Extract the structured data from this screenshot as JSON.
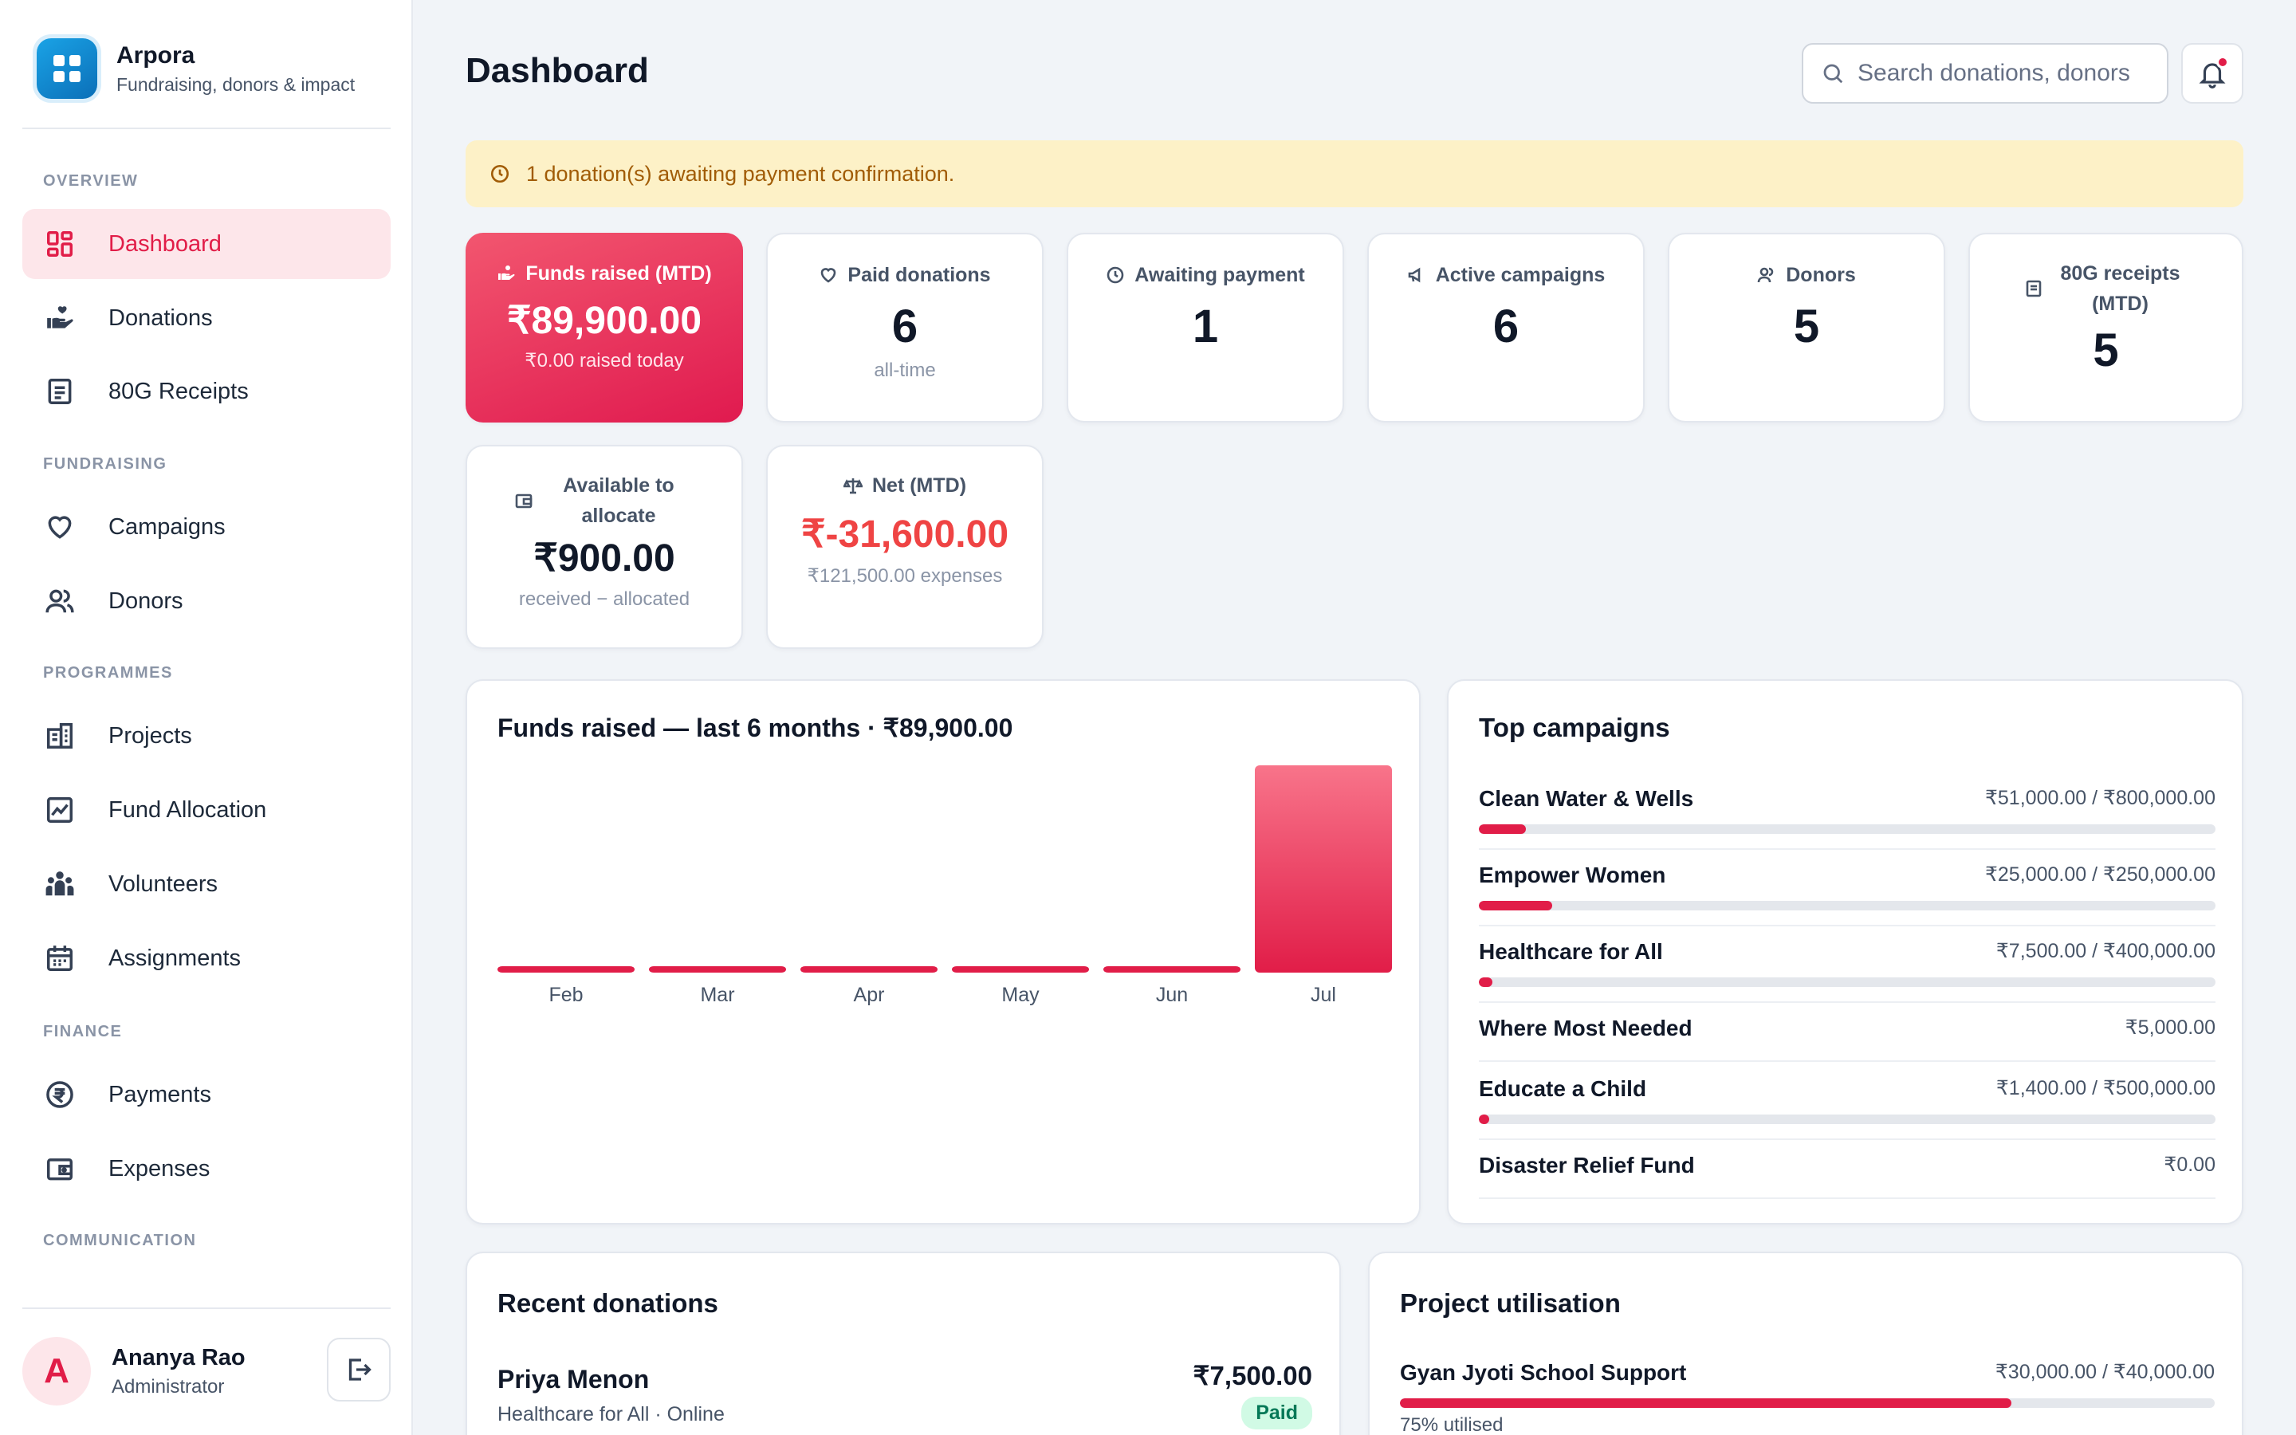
{
  "app": {
    "name": "Arpora",
    "tagline": "Fundraising, donors & impact"
  },
  "sidebar": {
    "sections": [
      {
        "label": "OVERVIEW",
        "items": [
          {
            "label": "Dashboard",
            "icon": "dashboard-icon",
            "active": true
          },
          {
            "label": "Donations",
            "icon": "donation-hand-icon"
          },
          {
            "label": "80G Receipts",
            "icon": "receipt-icon"
          }
        ]
      },
      {
        "label": "FUNDRAISING",
        "items": [
          {
            "label": "Campaigns",
            "icon": "heart-icon"
          },
          {
            "label": "Donors",
            "icon": "users-icon"
          }
        ]
      },
      {
        "label": "PROGRAMMES",
        "items": [
          {
            "label": "Projects",
            "icon": "building-icon"
          },
          {
            "label": "Fund Allocation",
            "icon": "chart-line-icon"
          },
          {
            "label": "Volunteers",
            "icon": "team-icon"
          },
          {
            "label": "Assignments",
            "icon": "calendar-icon"
          }
        ]
      },
      {
        "label": "FINANCE",
        "items": [
          {
            "label": "Payments",
            "icon": "rupee-icon"
          },
          {
            "label": "Expenses",
            "icon": "wallet-icon"
          }
        ]
      },
      {
        "label": "COMMUNICATION",
        "items": []
      }
    ]
  },
  "user": {
    "initial": "A",
    "name": "Ananya Rao",
    "role": "Administrator"
  },
  "header": {
    "title": "Dashboard",
    "search_placeholder": "Search donations, donors"
  },
  "alert": {
    "text": "1 donation(s) awaiting payment confirmation."
  },
  "stats": [
    {
      "label": "Funds raised (MTD)",
      "value": "₹89,900.00",
      "sub": "₹0.00 raised today",
      "icon": "hand-coins-icon"
    },
    {
      "label": "Paid donations",
      "value": "6",
      "sub": "all-time",
      "icon": "heart-icon"
    },
    {
      "label": "Awaiting payment",
      "value": "1",
      "sub": "",
      "icon": "clock-icon"
    },
    {
      "label": "Active campaigns",
      "value": "6",
      "sub": "",
      "icon": "megaphone-icon"
    },
    {
      "label": "Donors",
      "value": "5",
      "sub": "",
      "icon": "users-icon"
    },
    {
      "label": "80G receipts (MTD)",
      "value": "5",
      "sub": "",
      "icon": "receipt-icon"
    },
    {
      "label": "Available to allocate",
      "value": "₹900.00",
      "sub": "received − allocated",
      "icon": "wallet-icon"
    },
    {
      "label": "Net (MTD)",
      "value": "₹-31,600.00",
      "sub": "₹121,500.00 expenses",
      "icon": "scale-icon",
      "value_color": "#ef4444"
    }
  ],
  "funds_chart": {
    "title": "Funds raised — last 6 months · ₹89,900.00"
  },
  "chart_data": {
    "type": "bar",
    "categories": [
      "Feb",
      "Mar",
      "Apr",
      "May",
      "Jun",
      "Jul"
    ],
    "values": [
      0,
      0,
      0,
      0,
      0,
      89900
    ],
    "title": "Funds raised — last 6 months · ₹89,900.00",
    "xlabel": "",
    "ylabel": "",
    "colors": {
      "top": "#f8748a",
      "bottom": "#e11d48"
    }
  },
  "top_campaigns": {
    "title": "Top campaigns",
    "items": [
      {
        "name": "Clean Water & Wells",
        "amount": "₹51,000.00 / ₹800,000.00",
        "progress": 0.06375
      },
      {
        "name": "Empower Women",
        "amount": "₹25,000.00 / ₹250,000.00",
        "progress": 0.1
      },
      {
        "name": "Healthcare for All",
        "amount": "₹7,500.00 / ₹400,000.00",
        "progress": 0.01875
      },
      {
        "name": "Where Most Needed",
        "amount": "₹5,000.00",
        "progress": null
      },
      {
        "name": "Educate a Child",
        "amount": "₹1,400.00 / ₹500,000.00",
        "progress": 0.0028
      },
      {
        "name": "Disaster Relief Fund",
        "amount": "₹0.00",
        "progress": null
      }
    ]
  },
  "recent_donations": {
    "title": "Recent donations",
    "items": [
      {
        "donor": "Priya Menon",
        "detail": "Healthcare for All · Online",
        "amount": "₹7,500.00",
        "status": "Paid"
      }
    ]
  },
  "project_utilisation": {
    "title": "Project utilisation",
    "items": [
      {
        "name": "Gyan Jyoti School Support",
        "amount": "₹30,000.00 / ₹40,000.00",
        "progress": 0.75,
        "note": "75% utilised"
      }
    ]
  }
}
